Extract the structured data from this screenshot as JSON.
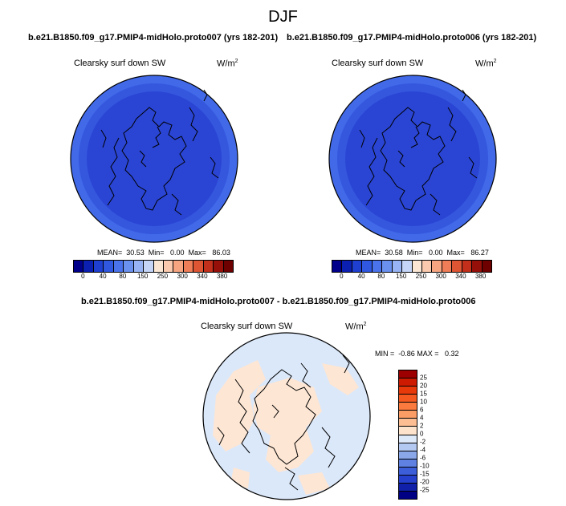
{
  "title": "DJF",
  "units_base": "W/m",
  "units_exp": "2",
  "panels": [
    {
      "case": "b.e21.B1850.f09_g17.PMIP4-midHolo.proto007 (yrs 182-201)",
      "variable": "Clearsky surf down SW",
      "stats": "MEAN=  30.53  Min=   0.00  Max=   86.03",
      "ring_colors": [
        "#4169e8",
        "#3557de",
        "#2a45d4",
        "#2a45d4"
      ]
    },
    {
      "case": "b.e21.B1850.f09_g17.PMIP4-midHolo.proto006 (yrs 182-201)",
      "variable": "Clearsky surf down SW",
      "stats": "MEAN=  30.58  Min=   0.00  Max=   86.27",
      "ring_colors": [
        "#4169e8",
        "#3557de",
        "#2a45d4",
        "#2a45d4"
      ]
    }
  ],
  "colorbar_top": {
    "colors": [
      "#00008a",
      "#0b1fb0",
      "#1e3fd0",
      "#2f57e0",
      "#4a72ea",
      "#6b91ef",
      "#97b3f3",
      "#c4d5f8",
      "#fbe6d4",
      "#fbc9ad",
      "#f7a581",
      "#ef7d57",
      "#de5533",
      "#c2301b",
      "#961009",
      "#6e0000"
    ],
    "labels": [
      "0",
      "40",
      "80",
      "150",
      "250",
      "300",
      "340",
      "380"
    ]
  },
  "diff": {
    "title": "b.e21.B1850.f09_g17.PMIP4-midHolo.proto007 - b.e21.B1850.f09_g17.PMIP4-midHolo.proto006",
    "variable": "Clearsky surf down SW",
    "stats": "MIN =  -0.86 MAX =   0.32",
    "base_color": "#dbe8fa",
    "positive_color": "#fde6d4"
  },
  "colorbar_diff": {
    "colors": [
      "#9d0000",
      "#cc1b00",
      "#e8390b",
      "#f5591f",
      "#fb7a3d",
      "#fd9d66",
      "#fdbe93",
      "#fde2cc",
      "#dde8f8",
      "#b4c9f1",
      "#8aa7ea",
      "#5f82e2",
      "#3c5fd9",
      "#2440cc",
      "#1020a8",
      "#000085"
    ],
    "labels": [
      "25",
      "20",
      "15",
      "10",
      "6",
      "4",
      "2",
      "0",
      "-2",
      "-4",
      "-6",
      "-10",
      "-15",
      "-20",
      "-25"
    ]
  }
}
